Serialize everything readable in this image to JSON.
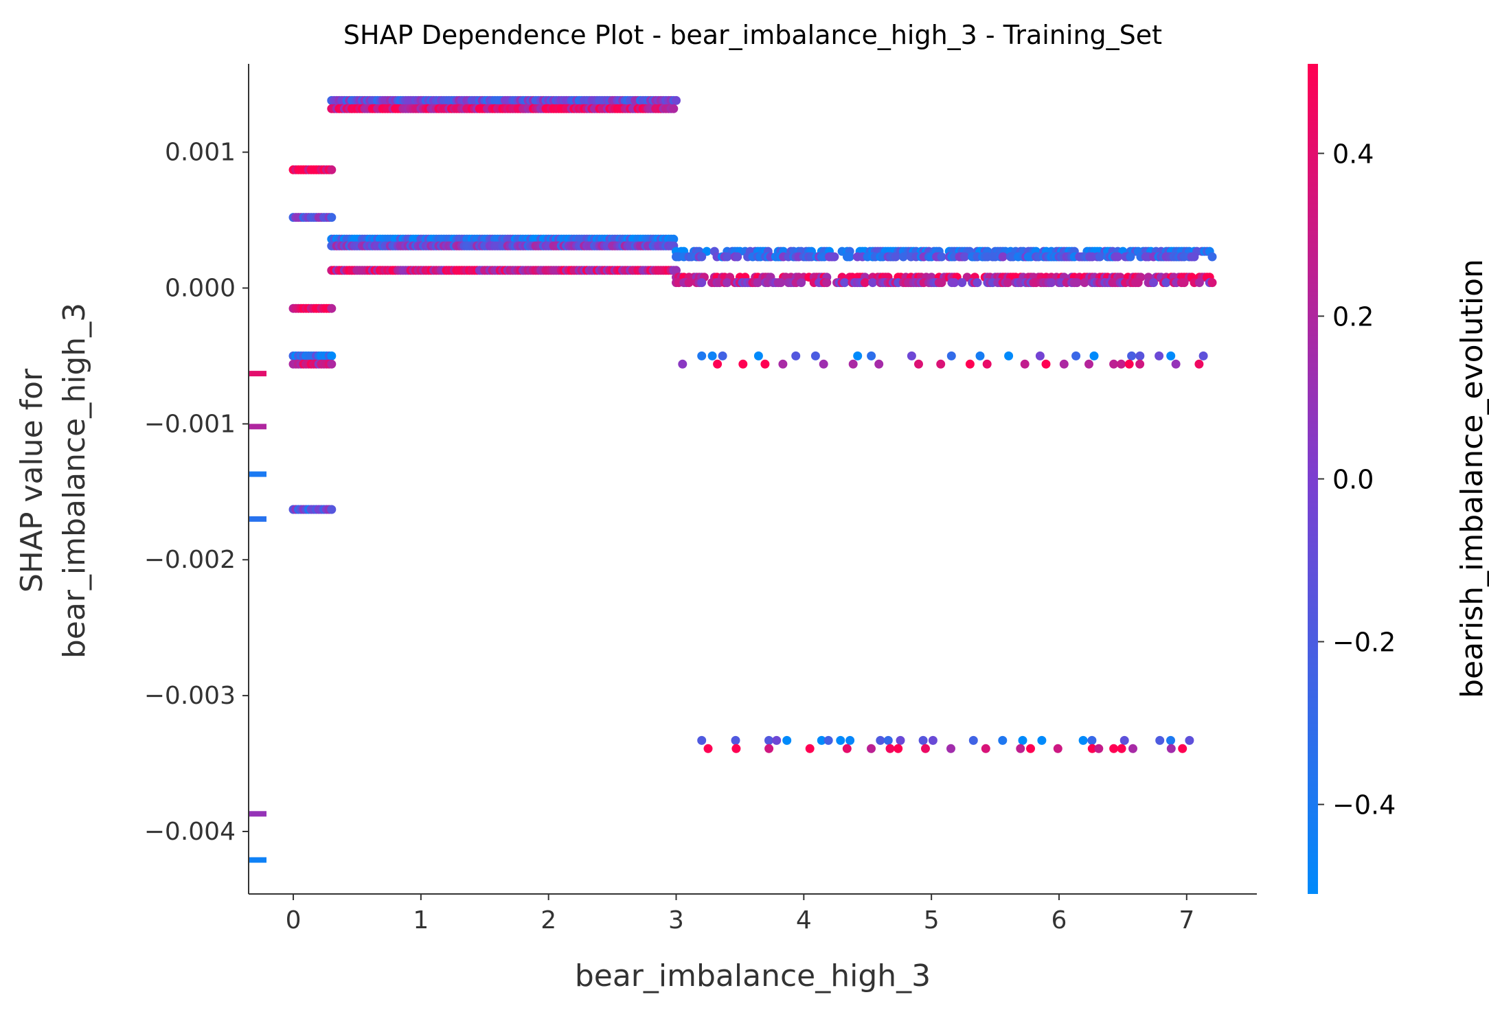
{
  "chart_data": {
    "type": "scatter",
    "title": "SHAP Dependence Plot - bear_imbalance_high_3 - Training_Set",
    "xlabel": "bear_imbalance_high_3",
    "ylabel_lines": [
      "SHAP value for",
      "bear_imbalance_high_3"
    ],
    "xlim": [
      -0.35,
      7.55
    ],
    "ylim": [
      -0.00446,
      0.00165
    ],
    "xticks": [
      0,
      1,
      2,
      3,
      4,
      5,
      6,
      7
    ],
    "xtick_labels": [
      "0",
      "1",
      "2",
      "3",
      "4",
      "5",
      "6",
      "7"
    ],
    "yticks": [
      0.001,
      0.0,
      -0.001,
      -0.002,
      -0.003,
      -0.004
    ],
    "ytick_labels": [
      "0.001",
      "0.000",
      "−0.001",
      "−0.002",
      "−0.003",
      "−0.004"
    ],
    "colorbar": {
      "label": "bearish_imbalance_evolution",
      "range": [
        -0.51,
        0.51
      ],
      "ticks": [
        0.4,
        0.2,
        0.0,
        -0.2,
        -0.4
      ],
      "tick_labels": [
        "0.4",
        "0.2",
        "0.0",
        "−0.2",
        "−0.4"
      ],
      "color_low": "#008afb",
      "color_mid": "#7b3fd0",
      "color_high": "#ff0052"
    },
    "missing_value_markers": [
      {
        "y": -0.00063,
        "c": 0.4
      },
      {
        "y": -0.00102,
        "c": 0.2
      },
      {
        "y": -0.00137,
        "c": -0.4
      },
      {
        "y": -0.0017,
        "c": -0.35
      },
      {
        "y": -0.00387,
        "c": 0.1
      },
      {
        "y": -0.00421,
        "c": -0.45
      }
    ],
    "series": [
      {
        "x_from": 0.0,
        "x_to": 0.3,
        "y": 0.00087,
        "c": 0.45,
        "dense": true
      },
      {
        "x_from": 0.0,
        "x_to": 0.3,
        "y": 0.00052,
        "c": -0.1,
        "dense": true
      },
      {
        "x_from": 0.0,
        "x_to": 0.3,
        "y": -0.00015,
        "c": 0.42,
        "dense": true
      },
      {
        "x_from": 0.0,
        "x_to": 0.3,
        "y": -0.0005,
        "c": -0.3,
        "dense": true
      },
      {
        "x_from": 0.0,
        "x_to": 0.3,
        "y": -0.00056,
        "c": 0.3,
        "dense": true
      },
      {
        "x_from": 0.0,
        "x_to": 0.3,
        "y": -0.00163,
        "c": -0.15,
        "dense": true
      },
      {
        "x_from": 0.3,
        "x_to": 3.0,
        "y": 0.00138,
        "c": -0.1,
        "dense": true
      },
      {
        "x_from": 0.3,
        "x_to": 3.0,
        "y": 0.00132,
        "c": 0.35,
        "dense": true
      },
      {
        "x_from": 0.3,
        "x_to": 3.0,
        "y": 0.00036,
        "c": -0.35,
        "dense": true
      },
      {
        "x_from": 0.3,
        "x_to": 3.0,
        "y": 0.00031,
        "c": -0.05,
        "dense": true
      },
      {
        "x_from": 0.3,
        "x_to": 3.0,
        "y": 0.00013,
        "c": 0.3,
        "dense": true
      },
      {
        "x_from": 3.0,
        "x_to": 7.2,
        "y": 0.00027,
        "c": -0.35,
        "dense": true
      },
      {
        "x_from": 3.0,
        "x_to": 7.2,
        "y": 0.00023,
        "c": -0.2,
        "dense": true
      },
      {
        "x_from": 3.0,
        "x_to": 7.2,
        "y": 8e-05,
        "c": 0.35,
        "dense": true
      },
      {
        "x_from": 3.0,
        "x_to": 7.2,
        "y": 4e-05,
        "c": 0.15,
        "dense": true
      },
      {
        "x_from": 3.2,
        "x_to": 7.2,
        "y": -0.0005,
        "c": -0.3,
        "dense": false
      },
      {
        "x_from": 3.05,
        "x_to": 7.2,
        "y": -0.00056,
        "c": 0.35,
        "dense": false
      },
      {
        "x_from": 3.2,
        "x_to": 7.2,
        "y": -0.00333,
        "c": -0.35,
        "dense": false
      },
      {
        "x_from": 3.25,
        "x_to": 7.2,
        "y": -0.00339,
        "c": 0.4,
        "dense": false
      }
    ]
  }
}
